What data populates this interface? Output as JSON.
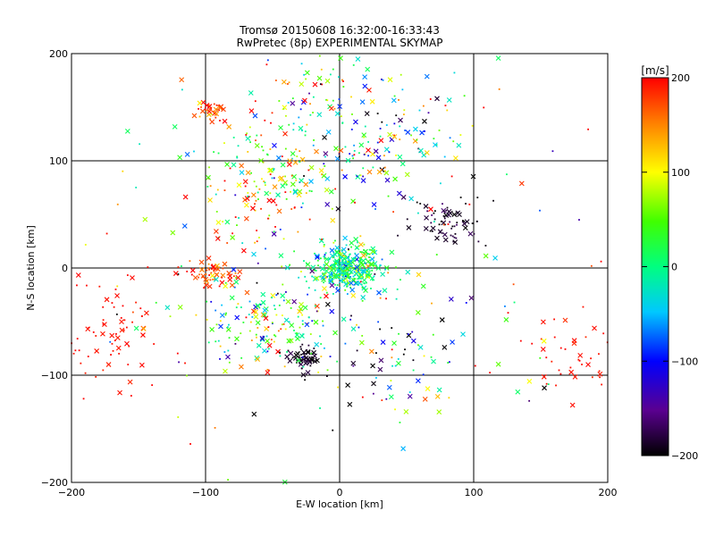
{
  "chart_data": {
    "type": "scatter",
    "title": "Tromsø 20150608 16:32:00-16:33:43",
    "subtitle": "RwPretec (8p) EXPERIMENTAL SKYMAP",
    "xlabel": "E-W location [km]",
    "ylabel": "N-S location [km]",
    "xlim": [
      -200,
      200
    ],
    "ylim": [
      -200,
      200
    ],
    "xticks": [
      -200,
      -100,
      0,
      100,
      200
    ],
    "yticks": [
      -200,
      -100,
      0,
      100,
      200
    ],
    "xtick_labels": [
      "−200",
      "−100",
      "0",
      "100",
      "200"
    ],
    "ytick_labels": [
      "−200",
      "−100",
      "0",
      "100",
      "200"
    ],
    "grid": true,
    "colorbar": {
      "label": "[m/s]",
      "min": -200,
      "max": 200,
      "ticks": [
        200,
        100,
        0,
        -100,
        -200
      ],
      "tick_labels": [
        "200",
        "100",
        "0",
        "−100",
        "−200"
      ],
      "colormap": "black-purple-blue-cyan-green-yellow-orange-red"
    },
    "markers": [
      "x",
      "dot"
    ],
    "clusters": [
      {
        "x": 5,
        "y": 0,
        "sx": 14,
        "sy": 10,
        "v": 0,
        "vs": 45,
        "n": 380
      },
      {
        "x": -95,
        "y": 148,
        "sx": 7,
        "sy": 4,
        "v": 170,
        "vs": 25,
        "n": 35
      },
      {
        "x": -95,
        "y": -5,
        "sx": 10,
        "sy": 6,
        "v": 175,
        "vs": 25,
        "n": 55
      },
      {
        "x": -25,
        "y": -85,
        "sx": 6,
        "sy": 6,
        "v": -190,
        "vs": 10,
        "n": 50
      },
      {
        "x": 80,
        "y": 40,
        "sx": 14,
        "sy": 12,
        "v": -185,
        "vs": 15,
        "n": 70
      },
      {
        "x": 20,
        "y": 120,
        "sx": 40,
        "sy": 25,
        "v": -30,
        "vs": 120,
        "n": 140
      },
      {
        "x": -55,
        "y": 80,
        "sx": 30,
        "sy": 30,
        "v": 80,
        "vs": 90,
        "n": 160
      },
      {
        "x": -50,
        "y": -50,
        "sx": 30,
        "sy": 25,
        "v": 20,
        "vs": 90,
        "n": 160
      },
      {
        "x": -170,
        "y": -60,
        "sx": 20,
        "sy": 35,
        "v": 195,
        "vs": 5,
        "n": 70
      },
      {
        "x": 175,
        "y": -85,
        "sx": 15,
        "sy": 20,
        "v": 195,
        "vs": 5,
        "n": 40
      },
      {
        "x": -10,
        "y": 170,
        "sx": 25,
        "sy": 15,
        "v": 40,
        "vs": 120,
        "n": 50
      },
      {
        "x": 40,
        "y": -90,
        "sx": 30,
        "sy": 25,
        "v": -120,
        "vs": 90,
        "n": 50
      },
      {
        "x": 0,
        "y": 0,
        "sx": 110,
        "sy": 100,
        "v": 50,
        "vs": 140,
        "n": 220
      }
    ]
  }
}
